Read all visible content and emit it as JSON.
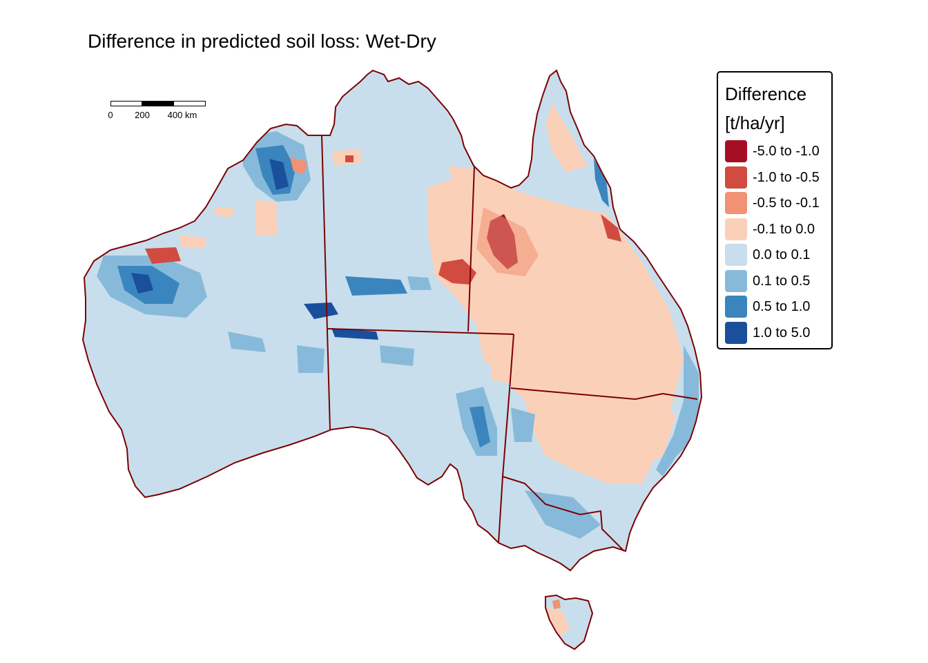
{
  "title": "Difference in predicted soil loss: Wet-Dry",
  "scale_bar": {
    "ticks": [
      "0",
      "200",
      "400 km"
    ]
  },
  "legend": {
    "title_line1": "Difference",
    "title_line2": "[t/ha/yr]",
    "items": [
      {
        "label": "-5.0 to -1.0",
        "color": "#A50F26"
      },
      {
        "label": "-1.0 to -0.5",
        "color": "#D24B40"
      },
      {
        "label": "-0.5 to -0.1",
        "color": "#F09273"
      },
      {
        "label": "-0.1 to 0.0",
        "color": "#FBD0B9"
      },
      {
        "label": "0.0 to 0.1",
        "color": "#C8DEEC"
      },
      {
        "label": "0.1 to 0.5",
        "color": "#87BADA"
      },
      {
        "label": "0.5 to 1.0",
        "color": "#3A85BE"
      },
      {
        "label": "1.0 to 5.0",
        "color": "#1A4F9C"
      }
    ]
  },
  "border_color": "#7A0000"
}
